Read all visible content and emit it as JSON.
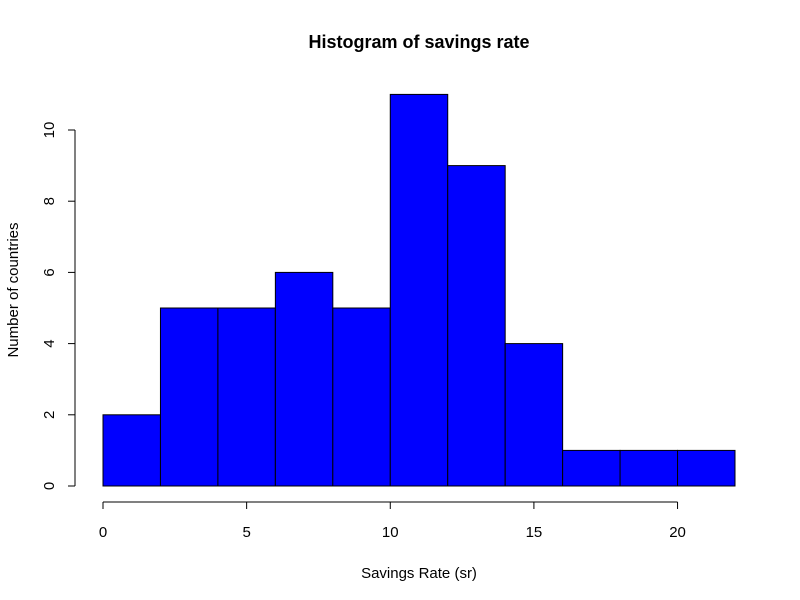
{
  "chart_data": {
    "type": "bar",
    "title": "Histogram of savings rate",
    "xlabel": "Savings Rate (sr)",
    "ylabel": "Number of countries",
    "bins": [
      {
        "start": 0,
        "end": 2,
        "count": 2
      },
      {
        "start": 2,
        "end": 4,
        "count": 5
      },
      {
        "start": 4,
        "end": 6,
        "count": 5
      },
      {
        "start": 6,
        "end": 8,
        "count": 6
      },
      {
        "start": 8,
        "end": 10,
        "count": 5
      },
      {
        "start": 10,
        "end": 12,
        "count": 11
      },
      {
        "start": 12,
        "end": 14,
        "count": 9
      },
      {
        "start": 14,
        "end": 16,
        "count": 4
      },
      {
        "start": 16,
        "end": 18,
        "count": 1
      },
      {
        "start": 18,
        "end": 20,
        "count": 1
      },
      {
        "start": 20,
        "end": 22,
        "count": 1
      }
    ],
    "xlim": [
      0,
      22
    ],
    "ylim": [
      0,
      11
    ],
    "x_ticks": [
      0,
      5,
      10,
      15,
      20
    ],
    "y_ticks": [
      0,
      2,
      4,
      6,
      8,
      10
    ],
    "bar_color": "#0000ff",
    "grid": false
  }
}
